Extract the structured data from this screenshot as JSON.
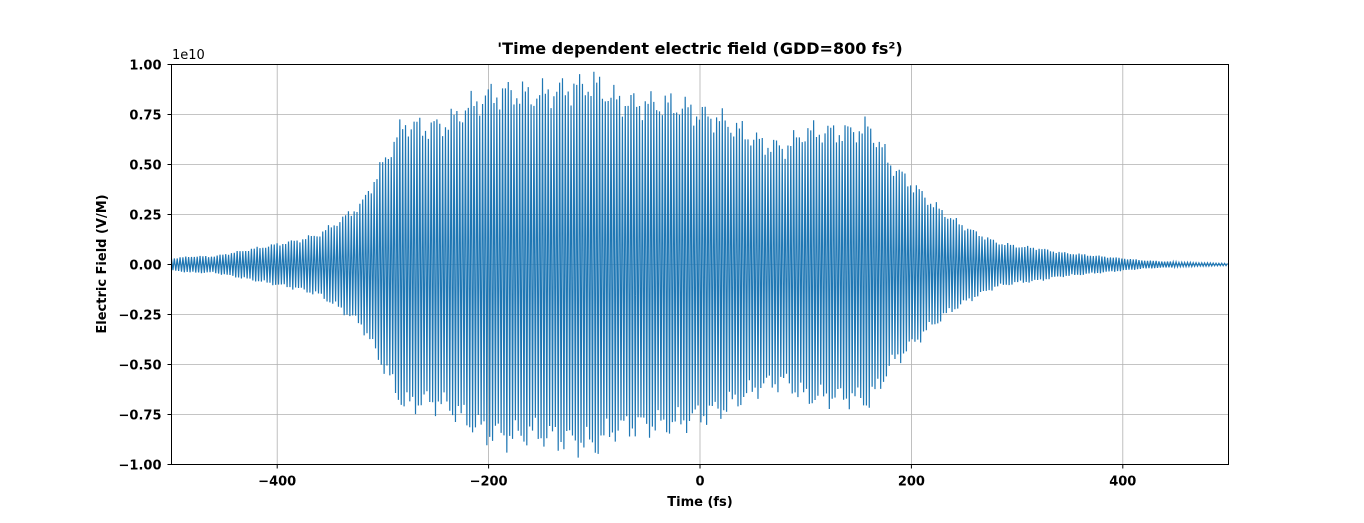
{
  "chart_data": {
    "type": "line",
    "title": "'Time dependent electric field (GDD=800 fs²)",
    "xlabel": "Time (fs)",
    "ylabel": "Electric Field (V/M)",
    "y_offset_label": "1e10",
    "xlim": [
      -500,
      500
    ],
    "ylim": [
      -1.0,
      1.0
    ],
    "x_ticks": [
      -400,
      -200,
      0,
      200,
      400
    ],
    "x_tick_labels": [
      "−400",
      "−200",
      "0",
      "200",
      "400"
    ],
    "y_ticks": [
      -1.0,
      -0.75,
      -0.5,
      -0.25,
      0.0,
      0.25,
      0.5,
      0.75,
      1.0
    ],
    "y_tick_labels": [
      "−1.00",
      "−0.75",
      "−0.50",
      "−0.25",
      "0.00",
      "0.25",
      "0.50",
      "0.75",
      "1.00"
    ],
    "grid": true,
    "line_color": "#1f77b4",
    "oscillation_period_fs": 2.7,
    "envelope": {
      "t": [
        -500,
        -480,
        -460,
        -440,
        -420,
        -400,
        -380,
        -360,
        -340,
        -320,
        -300,
        -280,
        -260,
        -240,
        -220,
        -200,
        -180,
        -160,
        -140,
        -120,
        -100,
        -80,
        -60,
        -40,
        -20,
        0,
        20,
        40,
        60,
        80,
        100,
        120,
        140,
        160,
        170,
        180,
        200,
        220,
        240,
        260,
        280,
        300,
        320,
        340,
        360,
        380,
        400,
        420,
        440,
        460,
        480,
        500
      ],
      "amplitude": [
        0.03,
        0.04,
        0.04,
        0.06,
        0.08,
        0.1,
        0.12,
        0.15,
        0.22,
        0.3,
        0.5,
        0.7,
        0.68,
        0.7,
        0.78,
        0.84,
        0.86,
        0.84,
        0.86,
        0.88,
        0.9,
        0.82,
        0.8,
        0.8,
        0.79,
        0.75,
        0.72,
        0.66,
        0.6,
        0.58,
        0.66,
        0.66,
        0.66,
        0.68,
        0.6,
        0.5,
        0.4,
        0.3,
        0.22,
        0.16,
        0.11,
        0.09,
        0.08,
        0.06,
        0.05,
        0.04,
        0.03,
        0.02,
        0.015,
        0.01,
        0.008,
        0.005
      ]
    }
  }
}
